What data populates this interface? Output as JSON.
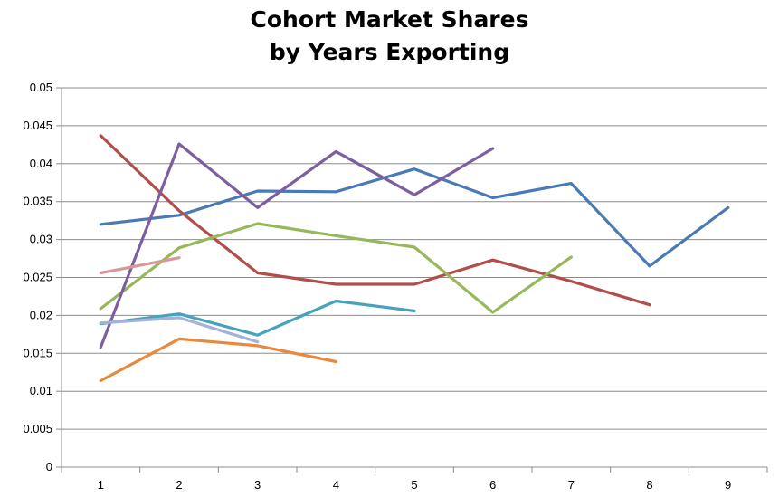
{
  "chart_data": {
    "type": "line",
    "title_lines": [
      "Cohort Market Shares",
      "by Years Exporting"
    ],
    "xlabel": "",
    "ylabel": "",
    "x_categories": [
      "1",
      "2",
      "3",
      "4",
      "5",
      "6",
      "7",
      "8",
      "9"
    ],
    "y_ticks": [
      "0",
      "0.005",
      "0.01",
      "0.015",
      "0.02",
      "0.025",
      "0.03",
      "0.035",
      "0.04",
      "0.045",
      "0.05"
    ],
    "ylim": [
      0,
      0.05
    ],
    "grid": "horizontal",
    "legend": "none",
    "series": [
      {
        "color": "#4a7ab5",
        "x": [
          1,
          2,
          3,
          4,
          5,
          6,
          7,
          8,
          9
        ],
        "values": [
          0.032,
          0.0332,
          0.0364,
          0.0363,
          0.0393,
          0.0355,
          0.0374,
          0.0265,
          0.0342
        ]
      },
      {
        "color": "#b14e4b",
        "x": [
          1,
          2,
          3,
          4,
          5,
          6,
          7,
          8
        ],
        "values": [
          0.0437,
          0.0338,
          0.0256,
          0.0241,
          0.0241,
          0.0273,
          0.0245,
          0.0214
        ]
      },
      {
        "color": "#96b85a",
        "x": [
          1,
          2,
          3,
          4,
          5,
          6,
          7
        ],
        "values": [
          0.0209,
          0.0289,
          0.0321,
          0.0305,
          0.029,
          0.0204,
          0.0277
        ]
      },
      {
        "color": "#7d5ea0",
        "x": [
          1,
          2,
          3,
          4,
          5,
          6
        ],
        "values": [
          0.0158,
          0.0426,
          0.0342,
          0.0416,
          0.0359,
          0.042
        ]
      },
      {
        "color": "#46a3bb",
        "x": [
          1,
          2,
          3,
          4,
          5
        ],
        "values": [
          0.0189,
          0.0202,
          0.0174,
          0.0219,
          0.0206
        ]
      },
      {
        "color": "#e7893e",
        "x": [
          1,
          2,
          3,
          4
        ],
        "values": [
          0.0114,
          0.0169,
          0.016,
          0.0139
        ]
      },
      {
        "color": "#a2b2d8",
        "x": [
          1,
          2,
          3
        ],
        "values": [
          0.019,
          0.0197,
          0.0165
        ]
      },
      {
        "color": "#d99898",
        "x": [
          1,
          2
        ],
        "values": [
          0.0256,
          0.0276
        ]
      }
    ]
  }
}
